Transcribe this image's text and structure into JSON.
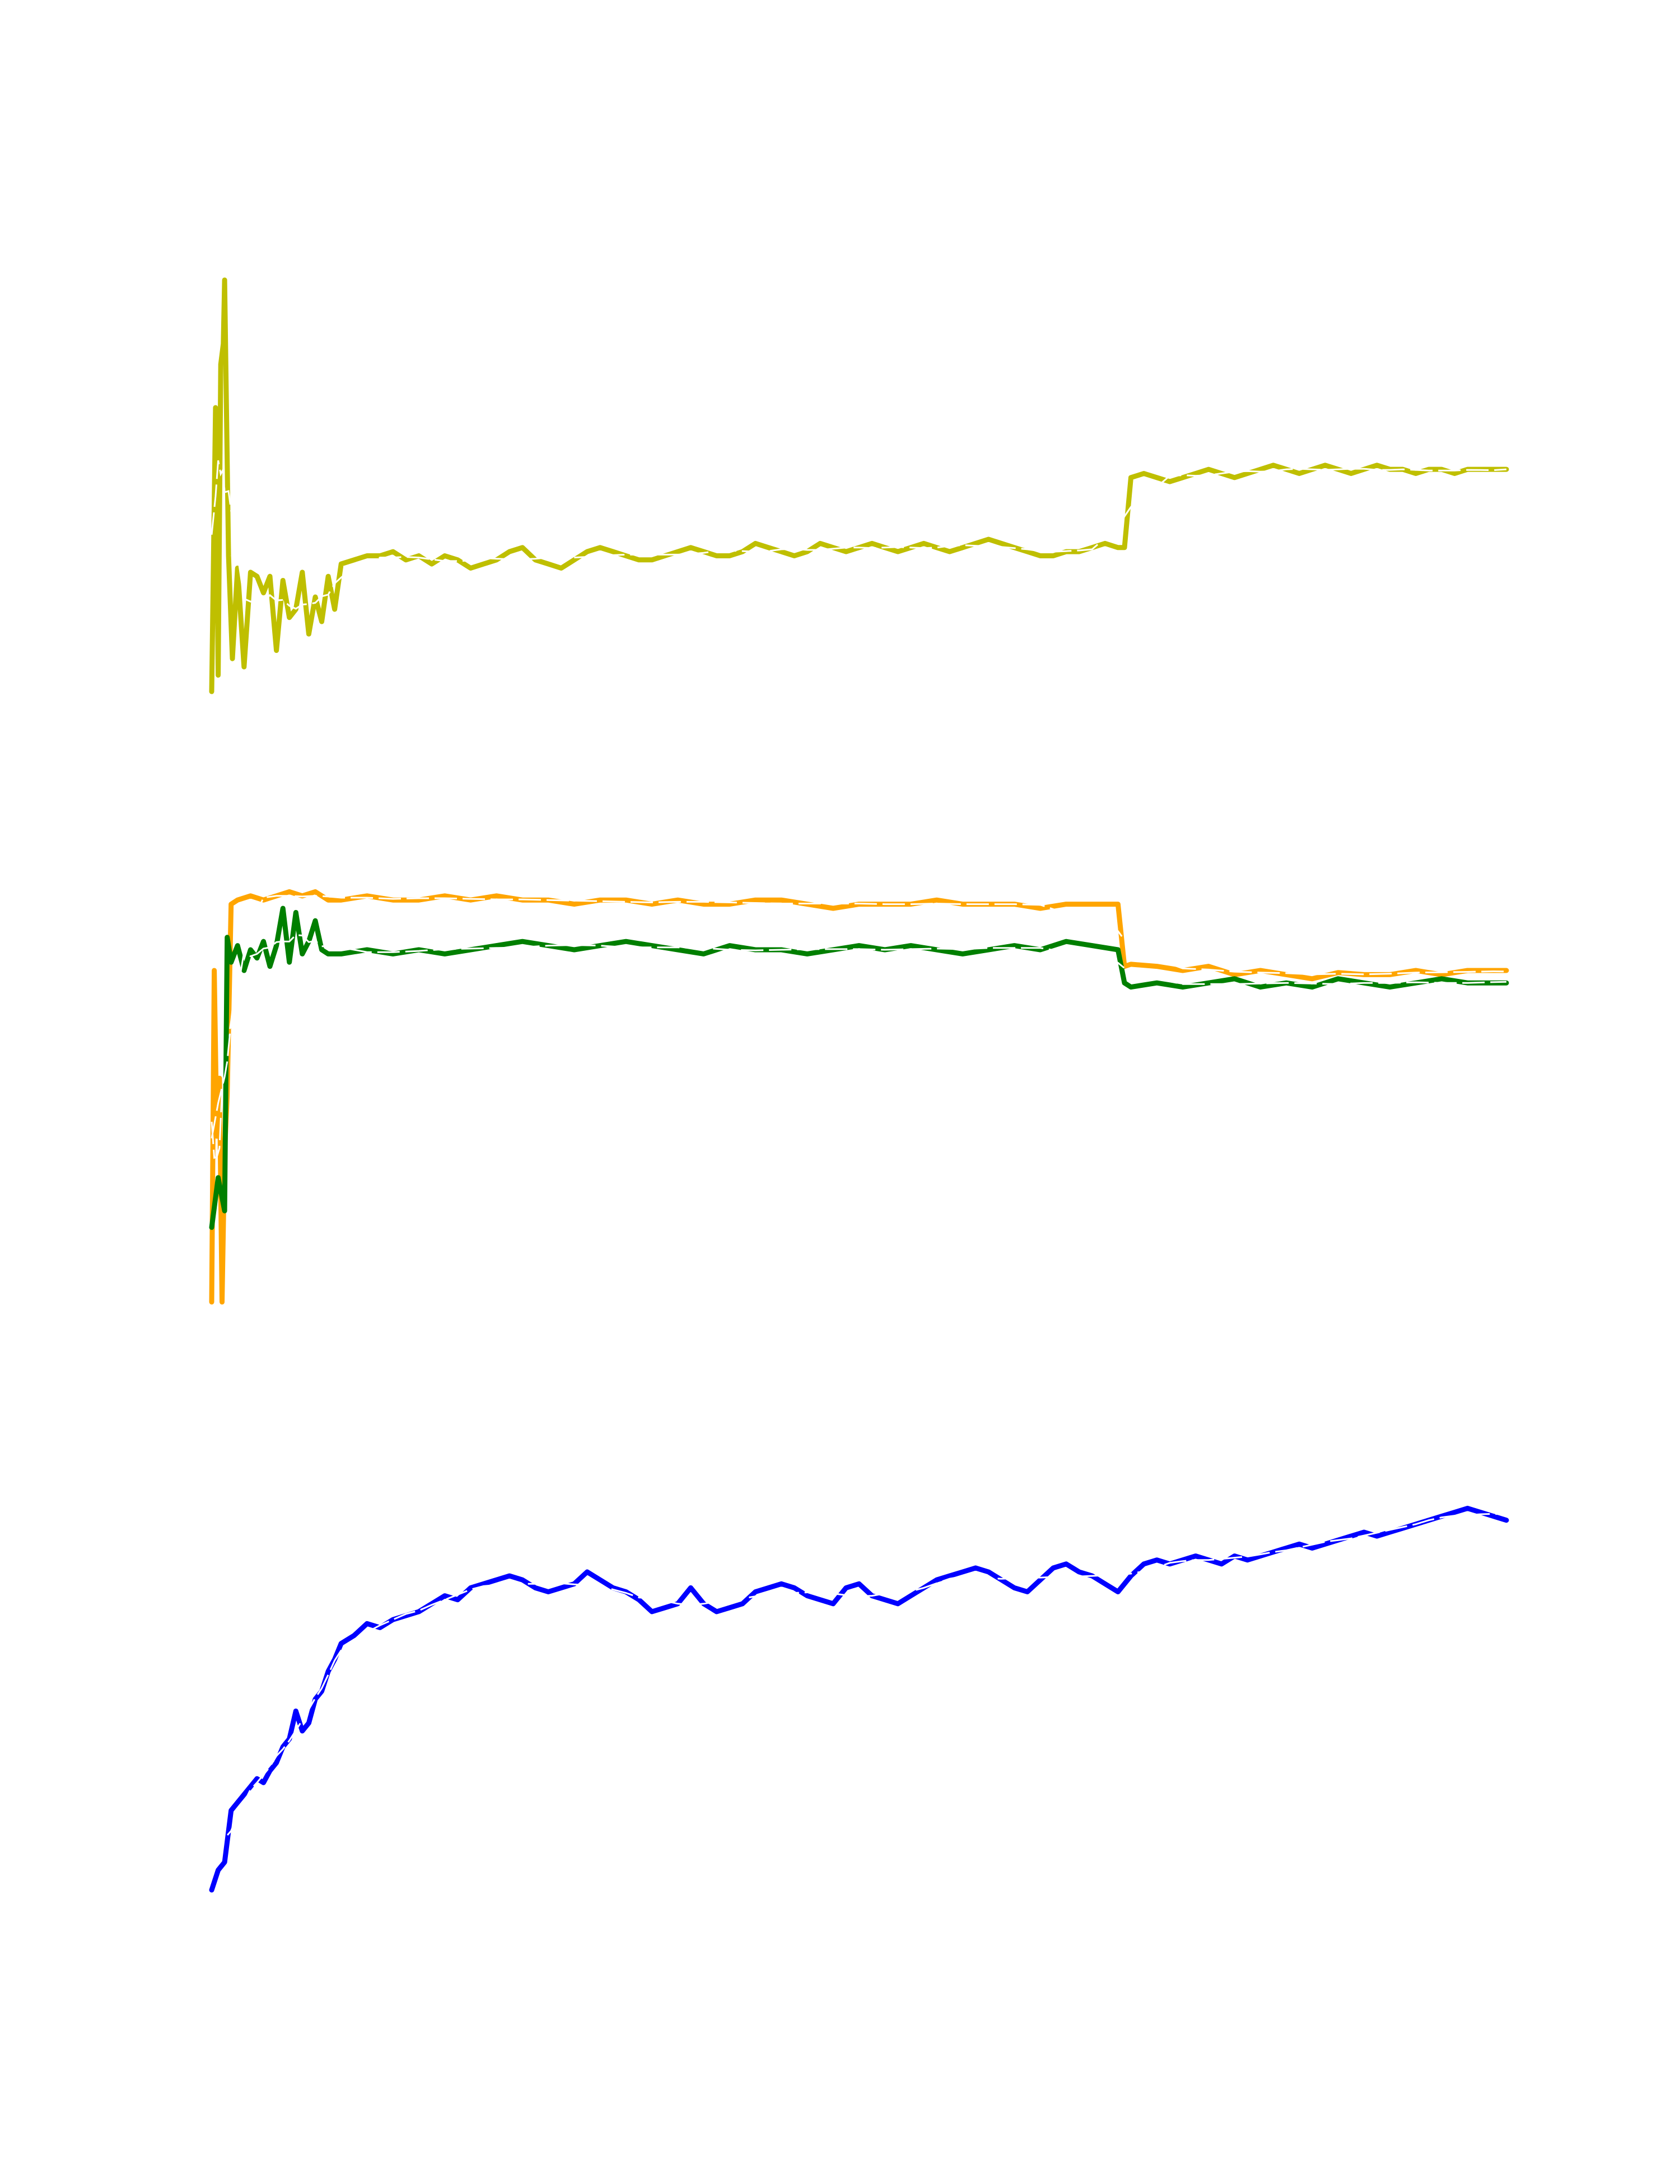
{
  "figure": {
    "background": "#ffffff",
    "panel_count": 3,
    "axes_visible": false,
    "tick_labels_visible": false,
    "grid": false,
    "legend": "none"
  },
  "chart_data": [
    {
      "type": "line",
      "title": "",
      "xlabel": "",
      "ylabel": "",
      "xlim": [
        0,
        100
      ],
      "ylim": [
        0,
        100
      ],
      "grid": false,
      "legend": "none",
      "series": [
        {
          "color": "#bfbf00",
          "style": "solid-thick",
          "x": [
            0.0,
            0.3,
            0.5,
            0.7,
            0.9,
            1.0,
            1.3,
            1.6,
            2.0,
            2.5,
            3.0,
            3.5,
            4.0,
            4.5,
            5.0,
            5.5,
            6.0,
            6.5,
            7.0,
            7.5,
            8.0,
            8.5,
            9.0,
            9.5,
            10,
            11,
            12,
            13,
            14,
            15,
            16,
            17,
            18,
            19,
            20,
            21,
            22,
            23,
            24,
            25,
            26,
            27,
            28,
            29,
            30,
            31,
            32,
            33,
            34,
            35,
            36,
            37,
            38,
            39,
            40,
            41,
            42,
            43,
            44,
            45,
            46,
            47,
            48,
            49,
            50,
            51,
            52,
            53,
            54,
            55,
            56,
            57,
            58,
            59,
            60,
            61,
            62,
            63,
            64,
            65,
            66,
            67,
            68,
            69,
            70,
            70.5,
            71,
            72,
            73,
            74,
            75,
            76,
            77,
            78,
            79,
            80,
            81,
            82,
            83,
            84,
            85,
            86,
            87,
            88,
            89,
            90,
            91,
            92,
            93,
            94,
            95,
            96,
            97,
            98,
            99,
            100
          ],
          "y": [
            0.0,
            69.0,
            4.0,
            79.5,
            84.5,
            100.0,
            33.0,
            8.0,
            30.0,
            6.0,
            29.0,
            28.0,
            24.0,
            28.0,
            10.0,
            27.0,
            18.0,
            20.0,
            29.0,
            14.0,
            23.0,
            17.0,
            28.0,
            20.0,
            31.0,
            32.0,
            33.0,
            33.0,
            34.0,
            32.0,
            33.0,
            31.0,
            33.0,
            32.0,
            30.0,
            31.0,
            32.0,
            34.0,
            35.0,
            32.0,
            31.0,
            30.0,
            32.0,
            34.0,
            35.0,
            34.0,
            33.0,
            32.0,
            32.0,
            33.0,
            34.0,
            35.0,
            34.0,
            33.0,
            33.0,
            34.0,
            36.0,
            35.0,
            34.0,
            33.0,
            34.0,
            36.0,
            35.0,
            34.0,
            35.0,
            36.0,
            35.0,
            34.0,
            35.0,
            36.0,
            35.0,
            34.0,
            35.0,
            36.0,
            37.0,
            36.0,
            35.0,
            34.0,
            33.0,
            33.0,
            34.0,
            34.0,
            35.0,
            36.0,
            35.0,
            35.0,
            52.0,
            53.0,
            52.0,
            51.0,
            52.0,
            53.0,
            54.0,
            53.0,
            52.0,
            53.0,
            54.0,
            55.0,
            54.0,
            53.0,
            54.0,
            55.0,
            54.0,
            53.0,
            54.0,
            55.0,
            54.0,
            54.0,
            53.0,
            54.0,
            54.0,
            53.0,
            54.0,
            54.0,
            54.0,
            54.0
          ]
        }
      ]
    },
    {
      "type": "line",
      "title": "",
      "xlabel": "",
      "ylabel": "",
      "xlim": [
        0,
        100
      ],
      "ylim": [
        0,
        100
      ],
      "grid": false,
      "legend": "none",
      "series": [
        {
          "color": "#ffa500",
          "style": "solid-thick",
          "x": [
            0.0,
            0.2,
            0.4,
            0.6,
            0.8,
            1.0,
            1.2,
            1.5,
            2.0,
            3,
            4,
            5,
            6,
            7,
            8,
            9,
            10,
            12,
            14,
            16,
            18,
            20,
            22,
            24,
            26,
            28,
            30,
            32,
            34,
            36,
            38,
            40,
            42,
            44,
            46,
            48,
            50,
            52,
            54,
            56,
            58,
            60,
            62,
            64,
            66,
            68,
            70,
            70.5,
            71,
            73,
            75,
            77,
            79,
            81,
            83,
            85,
            87,
            89,
            91,
            93,
            95,
            97,
            99,
            100
          ],
          "y": [
            0.0,
            80.0,
            40.0,
            54.0,
            0.0,
            36.0,
            50.0,
            96.0,
            97.0,
            98.0,
            97.0,
            98.0,
            99.0,
            98.0,
            99.0,
            97.0,
            97.0,
            98.0,
            97.0,
            97.0,
            98.0,
            97.0,
            98.0,
            97.0,
            97.0,
            96.0,
            97.0,
            97.0,
            96.0,
            97.0,
            96.0,
            96.0,
            97.0,
            97.0,
            96.0,
            95.0,
            96.0,
            96.0,
            96.0,
            97.0,
            96.0,
            96.0,
            96.0,
            95.0,
            96.0,
            96.0,
            96.0,
            81.0,
            81.5,
            81.0,
            80.0,
            81.0,
            79.0,
            80.0,
            79.0,
            78.0,
            79.5,
            79.0,
            79.0,
            80.0,
            79.0,
            80.0,
            80.0,
            80.0
          ]
        },
        {
          "color": "#007f00",
          "style": "solid-thick",
          "x": [
            0.0,
            0.5,
            1.0,
            1.2,
            1.5,
            2.0,
            2.5,
            3.0,
            3.5,
            4.0,
            4.5,
            5.0,
            5.5,
            6.0,
            6.5,
            7.0,
            7.5,
            8.0,
            8.5,
            9,
            10,
            12,
            14,
            16,
            18,
            20,
            22,
            24,
            26,
            28,
            30,
            32,
            34,
            36,
            38,
            40,
            42,
            44,
            46,
            48,
            50,
            52,
            54,
            56,
            58,
            60,
            62,
            64,
            66,
            68,
            70,
            70.5,
            71,
            73,
            75,
            77,
            79,
            81,
            83,
            85,
            87,
            89,
            91,
            93,
            95,
            97,
            99,
            100
          ],
          "y": [
            18.0,
            30.0,
            22.0,
            88.0,
            82.0,
            86.0,
            80.0,
            85.0,
            83.0,
            87.0,
            81.0,
            86.0,
            95.0,
            82.0,
            94.0,
            84.0,
            87.0,
            92.0,
            85.0,
            84.0,
            84.0,
            85.0,
            84.0,
            85.0,
            84.0,
            85.0,
            86.0,
            87.0,
            86.0,
            85.0,
            86.0,
            87.0,
            86.0,
            85.0,
            84.0,
            86.0,
            85.0,
            85.0,
            84.0,
            85.0,
            86.0,
            85.0,
            86.0,
            85.0,
            84.0,
            85.0,
            86.0,
            85.0,
            87.0,
            86.0,
            85.0,
            77.0,
            76.0,
            77.0,
            76.0,
            77.0,
            78.0,
            76.0,
            77.0,
            76.0,
            78.0,
            77.0,
            76.0,
            77.0,
            78.0,
            77.0,
            77.0,
            77.0
          ]
        }
      ]
    },
    {
      "type": "line",
      "title": "",
      "xlabel": "",
      "ylabel": "",
      "xlim": [
        0,
        100
      ],
      "ylim": [
        0,
        100
      ],
      "grid": false,
      "legend": "none",
      "series": [
        {
          "color": "#0000ff",
          "style": "solid-thick",
          "x": [
            0.0,
            0.5,
            1.0,
            1.5,
            2.0,
            2.5,
            3.0,
            3.5,
            4.0,
            4.5,
            5.0,
            5.5,
            6.0,
            6.5,
            7.0,
            7.5,
            8.0,
            8.5,
            9.0,
            9.5,
            10,
            11,
            12,
            13,
            14,
            15,
            16,
            17,
            18,
            19,
            20,
            21,
            22,
            23,
            24,
            25,
            26,
            27,
            28,
            29,
            30,
            31,
            32,
            33,
            34,
            35,
            36,
            37,
            38,
            39,
            40,
            41,
            42,
            43,
            44,
            45,
            46,
            47,
            48,
            49,
            50,
            51,
            52,
            53,
            54,
            55,
            56,
            57,
            58,
            59,
            60,
            61,
            62,
            63,
            64,
            65,
            66,
            67,
            68,
            69,
            70,
            71,
            72,
            73,
            74,
            75,
            76,
            77,
            78,
            79,
            80,
            81,
            82,
            83,
            84,
            85,
            86,
            87,
            88,
            89,
            90,
            91,
            92,
            93,
            94,
            95,
            96,
            97,
            98,
            99,
            100
          ],
          "y": [
            0.0,
            5.0,
            7.0,
            20.0,
            22.0,
            24.0,
            26.0,
            28.0,
            27.0,
            30.0,
            32.0,
            36.0,
            38.0,
            45.0,
            40.0,
            42.0,
            48.0,
            50.0,
            55.0,
            58.0,
            62.0,
            64.0,
            67.0,
            66.0,
            68.0,
            69.0,
            70.0,
            72.0,
            74.0,
            73.0,
            76.0,
            77.0,
            78.0,
            79.0,
            78.0,
            76.0,
            75.0,
            76.0,
            77.0,
            80.0,
            78.0,
            76.0,
            75.0,
            73.0,
            70.0,
            71.0,
            72.0,
            76.0,
            72.0,
            70.0,
            71.0,
            72.0,
            75.0,
            76.0,
            77.0,
            76.0,
            74.0,
            73.0,
            72.0,
            76.0,
            77.0,
            74.0,
            73.0,
            72.0,
            74.0,
            76.0,
            78.0,
            79.0,
            80.0,
            81.0,
            80.0,
            78.0,
            76.0,
            75.0,
            78.0,
            81.0,
            82.0,
            80.0,
            79.0,
            77.0,
            75.0,
            79.0,
            82.0,
            83.0,
            82.0,
            83.0,
            84.0,
            83.0,
            82.0,
            84.0,
            83.0,
            84.0,
            85.0,
            86.0,
            87.0,
            86.0,
            87.0,
            88.0,
            89.0,
            90.0,
            89.0,
            90.0,
            91.0,
            92.0,
            93.0,
            94.0,
            95.0,
            96.0,
            95.0,
            94.0,
            93.0
          ]
        }
      ]
    }
  ]
}
